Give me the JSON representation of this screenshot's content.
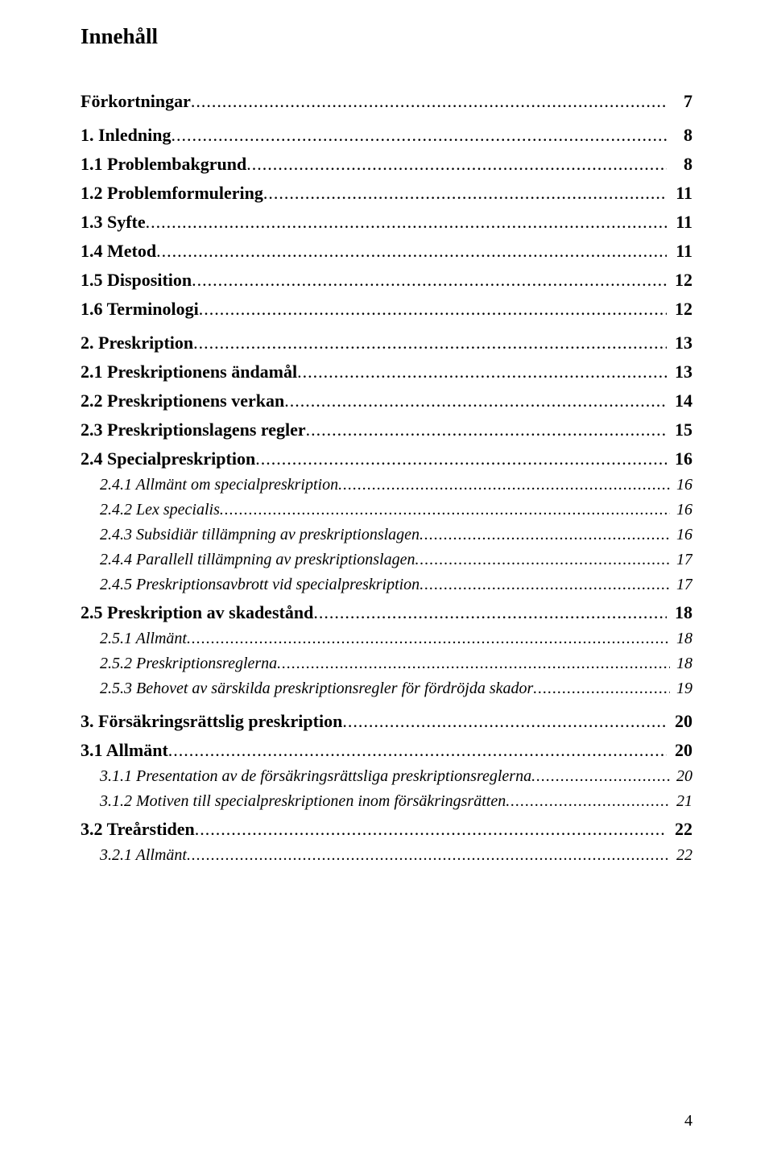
{
  "title": "Innehåll",
  "page_number": "4",
  "entries": [
    {
      "level": 0,
      "label": "Förkortningar",
      "page": "7"
    },
    {
      "level": 0,
      "label": "1. Inledning",
      "page": "8"
    },
    {
      "level": 1,
      "label": "1.1 Problembakgrund",
      "page": "8"
    },
    {
      "level": 1,
      "label": "1.2 Problemformulering",
      "page": "11"
    },
    {
      "level": 1,
      "label": "1.3 Syfte",
      "page": "11"
    },
    {
      "level": 1,
      "label": "1.4 Metod",
      "page": "11"
    },
    {
      "level": 1,
      "label": "1.5 Disposition",
      "page": "12"
    },
    {
      "level": 1,
      "label": "1.6 Terminologi",
      "page": "12"
    },
    {
      "level": 0,
      "label": "2. Preskription",
      "page": "13"
    },
    {
      "level": 1,
      "label": "2.1 Preskriptionens ändamål",
      "page": "13"
    },
    {
      "level": 1,
      "label": "2.2 Preskriptionens verkan",
      "page": "14"
    },
    {
      "level": 1,
      "label": "2.3 Preskriptionslagens regler",
      "page": "15"
    },
    {
      "level": 1,
      "label": "2.4 Specialpreskription",
      "page": "16"
    },
    {
      "level": 2,
      "label": "2.4.1 Allmänt om specialpreskription",
      "page": "16"
    },
    {
      "level": 2,
      "label": "2.4.2 Lex specialis",
      "page": "16"
    },
    {
      "level": 2,
      "label": "2.4.3 Subsidiär tillämpning av preskriptionslagen",
      "page": "16"
    },
    {
      "level": 2,
      "label": "2.4.4 Parallell tillämpning av preskriptionslagen",
      "page": "17"
    },
    {
      "level": 2,
      "label": "2.4.5 Preskriptionsavbrott vid specialpreskription",
      "page": "17"
    },
    {
      "level": 1,
      "label": "2.5 Preskription av skadestånd",
      "page": "18"
    },
    {
      "level": 2,
      "label": "2.5.1 Allmänt",
      "page": "18"
    },
    {
      "level": 2,
      "label": "2.5.2 Preskriptionsreglerna",
      "page": "18"
    },
    {
      "level": 2,
      "label": "2.5.3 Behovet av särskilda preskriptionsregler för fördröjda skador",
      "page": "19"
    },
    {
      "level": 0,
      "label": "3. Försäkringsrättslig preskription",
      "page": "20"
    },
    {
      "level": 1,
      "label": "3.1 Allmänt",
      "page": "20"
    },
    {
      "level": 2,
      "label": "3.1.1 Presentation av de försäkringsrättsliga preskriptionsreglerna",
      "page": "20"
    },
    {
      "level": 2,
      "label": "3.1.2 Motiven till specialpreskriptionen inom försäkringsrätten",
      "page": "21"
    },
    {
      "level": 1,
      "label": "3.2 Treårstiden",
      "page": "22"
    },
    {
      "level": 2,
      "label": "3.2.1 Allmänt",
      "page": "22"
    }
  ]
}
